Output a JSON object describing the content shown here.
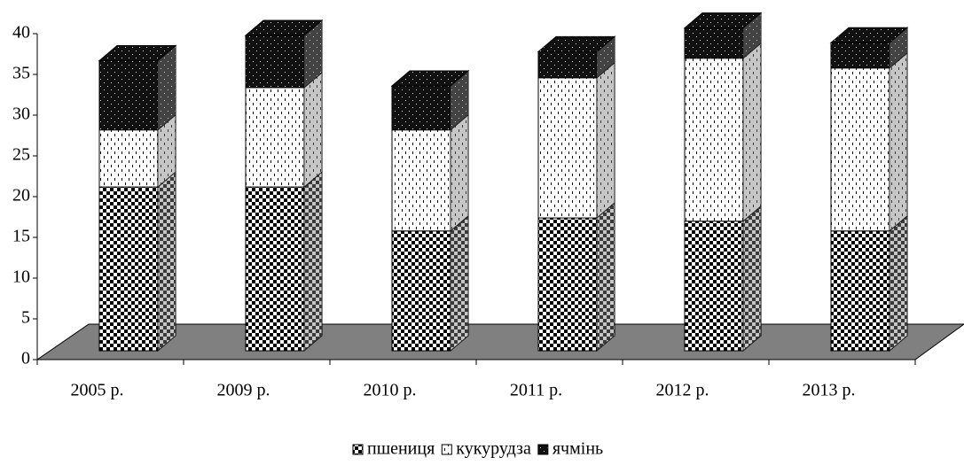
{
  "chart_data": {
    "type": "bar3d_stacked",
    "categories": [
      "2005 р.",
      "2009 р.",
      "2010 р.",
      "2011 р.",
      "2012 р.",
      "2013 р."
    ],
    "series": [
      {
        "name": "пшениця",
        "color": "#000000",
        "values": [
          20.1,
          20.1,
          14.7,
          16.3,
          15.9,
          14.7
        ]
      },
      {
        "name": "кукурудза",
        "color": "#ffffff",
        "values": [
          7,
          12.2,
          12.4,
          17.2,
          20,
          20
        ]
      },
      {
        "name": "ячмінь",
        "color": "#111111",
        "values": [
          8.5,
          6.4,
          5.4,
          3.2,
          3.7,
          3.1
        ]
      }
    ],
    "ylim": [
      0,
      40
    ],
    "yticks": [
      0,
      5,
      10,
      15,
      20,
      25,
      30,
      35,
      40
    ],
    "legend": "bottom"
  }
}
